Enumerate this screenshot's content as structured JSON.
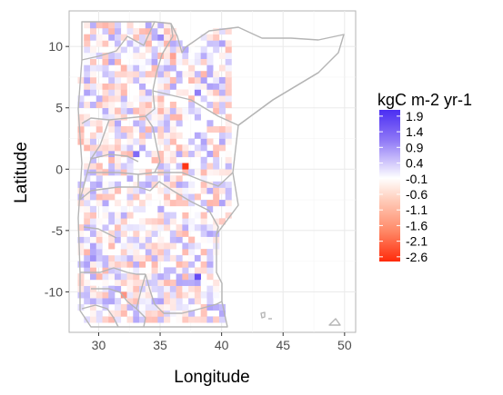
{
  "chart_data": {
    "type": "heatmap",
    "xlabel": "Longitude",
    "ylabel": "Latitude",
    "xlim": [
      27.6,
      50.9
    ],
    "ylim": [
      -13.3,
      12.9
    ],
    "x_ticks": [
      30,
      35,
      40,
      45,
      50
    ],
    "x_tick_labels": [
      "30",
      "35",
      "40",
      "45",
      "50"
    ],
    "y_ticks": [
      10,
      5,
      0,
      -5,
      -10
    ],
    "y_tick_labels": [
      "10",
      "5",
      "0",
      "-5",
      "-10"
    ],
    "grid": true,
    "legend": {
      "title": "kgC m-2 yr-1",
      "placement": "right",
      "labels": [
        "1.9",
        "1.4",
        "0.9",
        "0.4",
        "-0.1",
        "-0.6",
        "-1.1",
        "-1.6",
        "-2.1",
        "-2.6"
      ],
      "values": [
        1.9,
        1.4,
        0.9,
        0.4,
        -0.1,
        -0.6,
        -1.1,
        -1.6,
        -2.1,
        -2.6
      ],
      "range": [
        -2.75,
        2.1
      ],
      "colors": {
        "high": "#4b2ef2",
        "mid": "#ffffff",
        "low": "#ff2a0a"
      }
    },
    "grid_cell_deg": 0.5,
    "domain_lon": [
      28.3,
      40.5
    ],
    "domain_lat": [
      -12.5,
      12.5
    ],
    "highlight_cells": [
      {
        "lon": 37.0,
        "lat": 0.0,
        "value": -2.6
      },
      {
        "lon": 38.0,
        "lat": -9.0,
        "value": 1.8
      },
      {
        "lon": 33.0,
        "lat": 1.0,
        "value": 1.5
      },
      {
        "lon": 38.0,
        "lat": 6.0,
        "value": 1.3
      },
      {
        "lon": 35.0,
        "lat": 10.5,
        "value": 1.2
      },
      {
        "lon": 32.0,
        "lat": -10.5,
        "value": -1.4
      },
      {
        "lon": 29.5,
        "lat": -7.5,
        "value": 1.1
      },
      {
        "lon": 36.0,
        "lat": 9.0,
        "value": -1.2
      }
    ]
  }
}
